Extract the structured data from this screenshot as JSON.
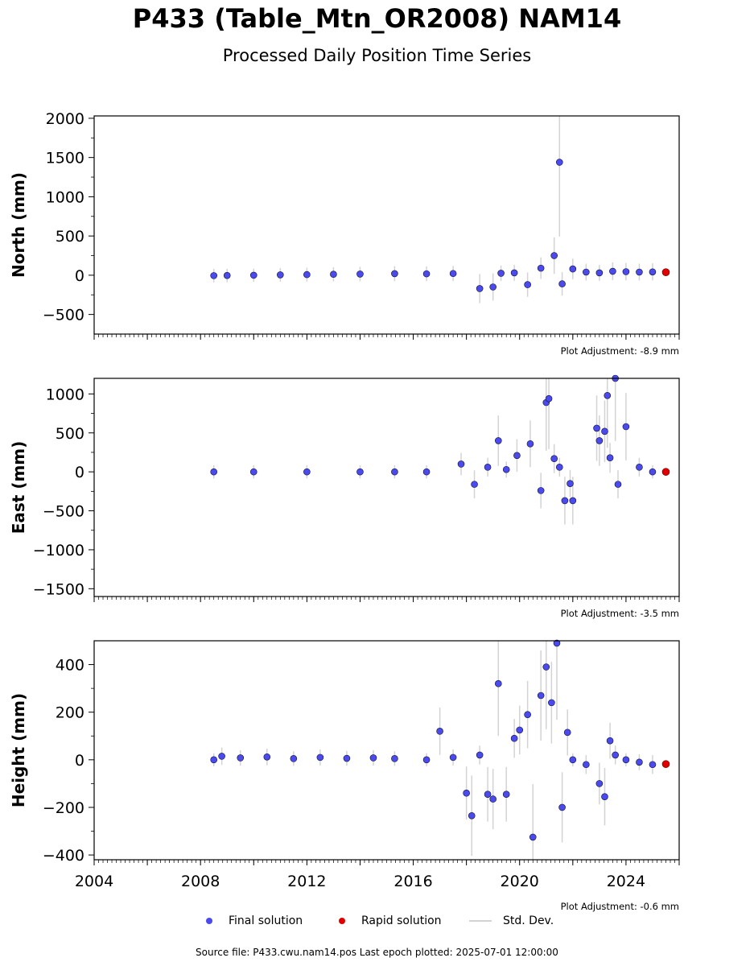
{
  "title": "P433 (Table_Mtn_OR2008) NAM14",
  "subtitle": "Processed Daily Position Time Series",
  "footer": "Source file: P433.cwu.nam14.pos  Last epoch plotted: 2025-07-01 12:00:00",
  "legend": {
    "final": "Final solution",
    "rapid": "Rapid solution",
    "stddev": "Std. Dev."
  },
  "colors": {
    "final": "#4a4aee",
    "rapid": "#e00000",
    "stddev": "#d3d3d3",
    "marker_edge": "#101030"
  },
  "chart_data": [
    {
      "type": "scatter",
      "ylabel": "North (mm)",
      "adjustment": "Plot Adjustment: -8.9 mm",
      "xlim": [
        2004,
        2026
      ],
      "ylim": [
        -750,
        2030
      ],
      "yticks": [
        -500,
        0,
        500,
        1000,
        1500,
        2000
      ],
      "xticks": [],
      "x": [
        2008.5,
        2009.0,
        2010.0,
        2011.0,
        2012.0,
        2013.0,
        2014.0,
        2015.3,
        2016.5,
        2017.5,
        2018.5,
        2019.0,
        2019.3,
        2019.8,
        2020.3,
        2020.8,
        2021.3,
        2021.5,
        2021.6,
        2022.0,
        2022.5,
        2023.0,
        2023.5,
        2024.0,
        2024.5,
        2025.0
      ],
      "y": [
        -5,
        -3,
        0,
        5,
        8,
        12,
        15,
        20,
        18,
        22,
        -170,
        -150,
        25,
        30,
        -120,
        90,
        250,
        1440,
        -110,
        80,
        40,
        30,
        50,
        45,
        40,
        42
      ],
      "rapid": {
        "x": [
          2025.5
        ],
        "y": [
          38
        ]
      }
    },
    {
      "type": "scatter",
      "ylabel": "East (mm)",
      "adjustment": "Plot Adjustment: -3.5 mm",
      "xlim": [
        2004,
        2026
      ],
      "ylim": [
        -1600,
        1200
      ],
      "yticks": [
        -1500,
        -1000,
        -500,
        0,
        500,
        1000
      ],
      "xticks": [],
      "x": [
        2008.5,
        2010.0,
        2012.0,
        2014.0,
        2015.3,
        2016.5,
        2017.8,
        2018.3,
        2018.8,
        2019.2,
        2019.5,
        2019.9,
        2020.4,
        2020.8,
        2021.0,
        2021.1,
        2021.3,
        2021.5,
        2021.7,
        2021.9,
        2022.0,
        2022.9,
        2023.0,
        2023.2,
        2023.3,
        2023.4,
        2023.6,
        2023.7,
        2024.0,
        2024.5,
        2025.0
      ],
      "y": [
        0,
        0,
        0,
        0,
        0,
        0,
        100,
        -160,
        60,
        400,
        30,
        210,
        360,
        -240,
        890,
        940,
        170,
        60,
        -370,
        -150,
        -370,
        560,
        400,
        520,
        980,
        180,
        1200,
        -160,
        580,
        60,
        0
      ],
      "rapid": {
        "x": [
          2025.5
        ],
        "y": [
          0
        ]
      }
    },
    {
      "type": "scatter",
      "ylabel": "Height (mm)",
      "adjustment": "Plot Adjustment: -0.6 mm",
      "xlim": [
        2004,
        2026
      ],
      "ylim": [
        -420,
        500
      ],
      "yticks": [
        -400,
        -200,
        0,
        200,
        400
      ],
      "xticks": [
        "2004",
        "2008",
        "2012",
        "2016",
        "2020",
        "2024"
      ],
      "x": [
        2008.5,
        2008.8,
        2009.5,
        2010.5,
        2011.5,
        2012.5,
        2013.5,
        2014.5,
        2015.3,
        2016.5,
        2017.0,
        2017.5,
        2018.0,
        2018.2,
        2018.5,
        2018.8,
        2019.0,
        2019.2,
        2019.5,
        2019.8,
        2020.0,
        2020.3,
        2020.5,
        2020.8,
        2021.0,
        2021.2,
        2021.4,
        2021.6,
        2021.8,
        2022.0,
        2022.5,
        2023.0,
        2023.2,
        2023.4,
        2023.6,
        2024.0,
        2024.5,
        2025.0
      ],
      "y": [
        0,
        15,
        8,
        12,
        5,
        10,
        6,
        8,
        5,
        0,
        120,
        10,
        -140,
        -235,
        20,
        -145,
        -165,
        320,
        -145,
        90,
        125,
        190,
        -325,
        270,
        390,
        240,
        490,
        -200,
        115,
        0,
        -20,
        -100,
        -155,
        80,
        20,
        0,
        -10,
        -20
      ],
      "rapid": {
        "x": [
          2025.5
        ],
        "y": [
          -18
        ]
      }
    }
  ]
}
